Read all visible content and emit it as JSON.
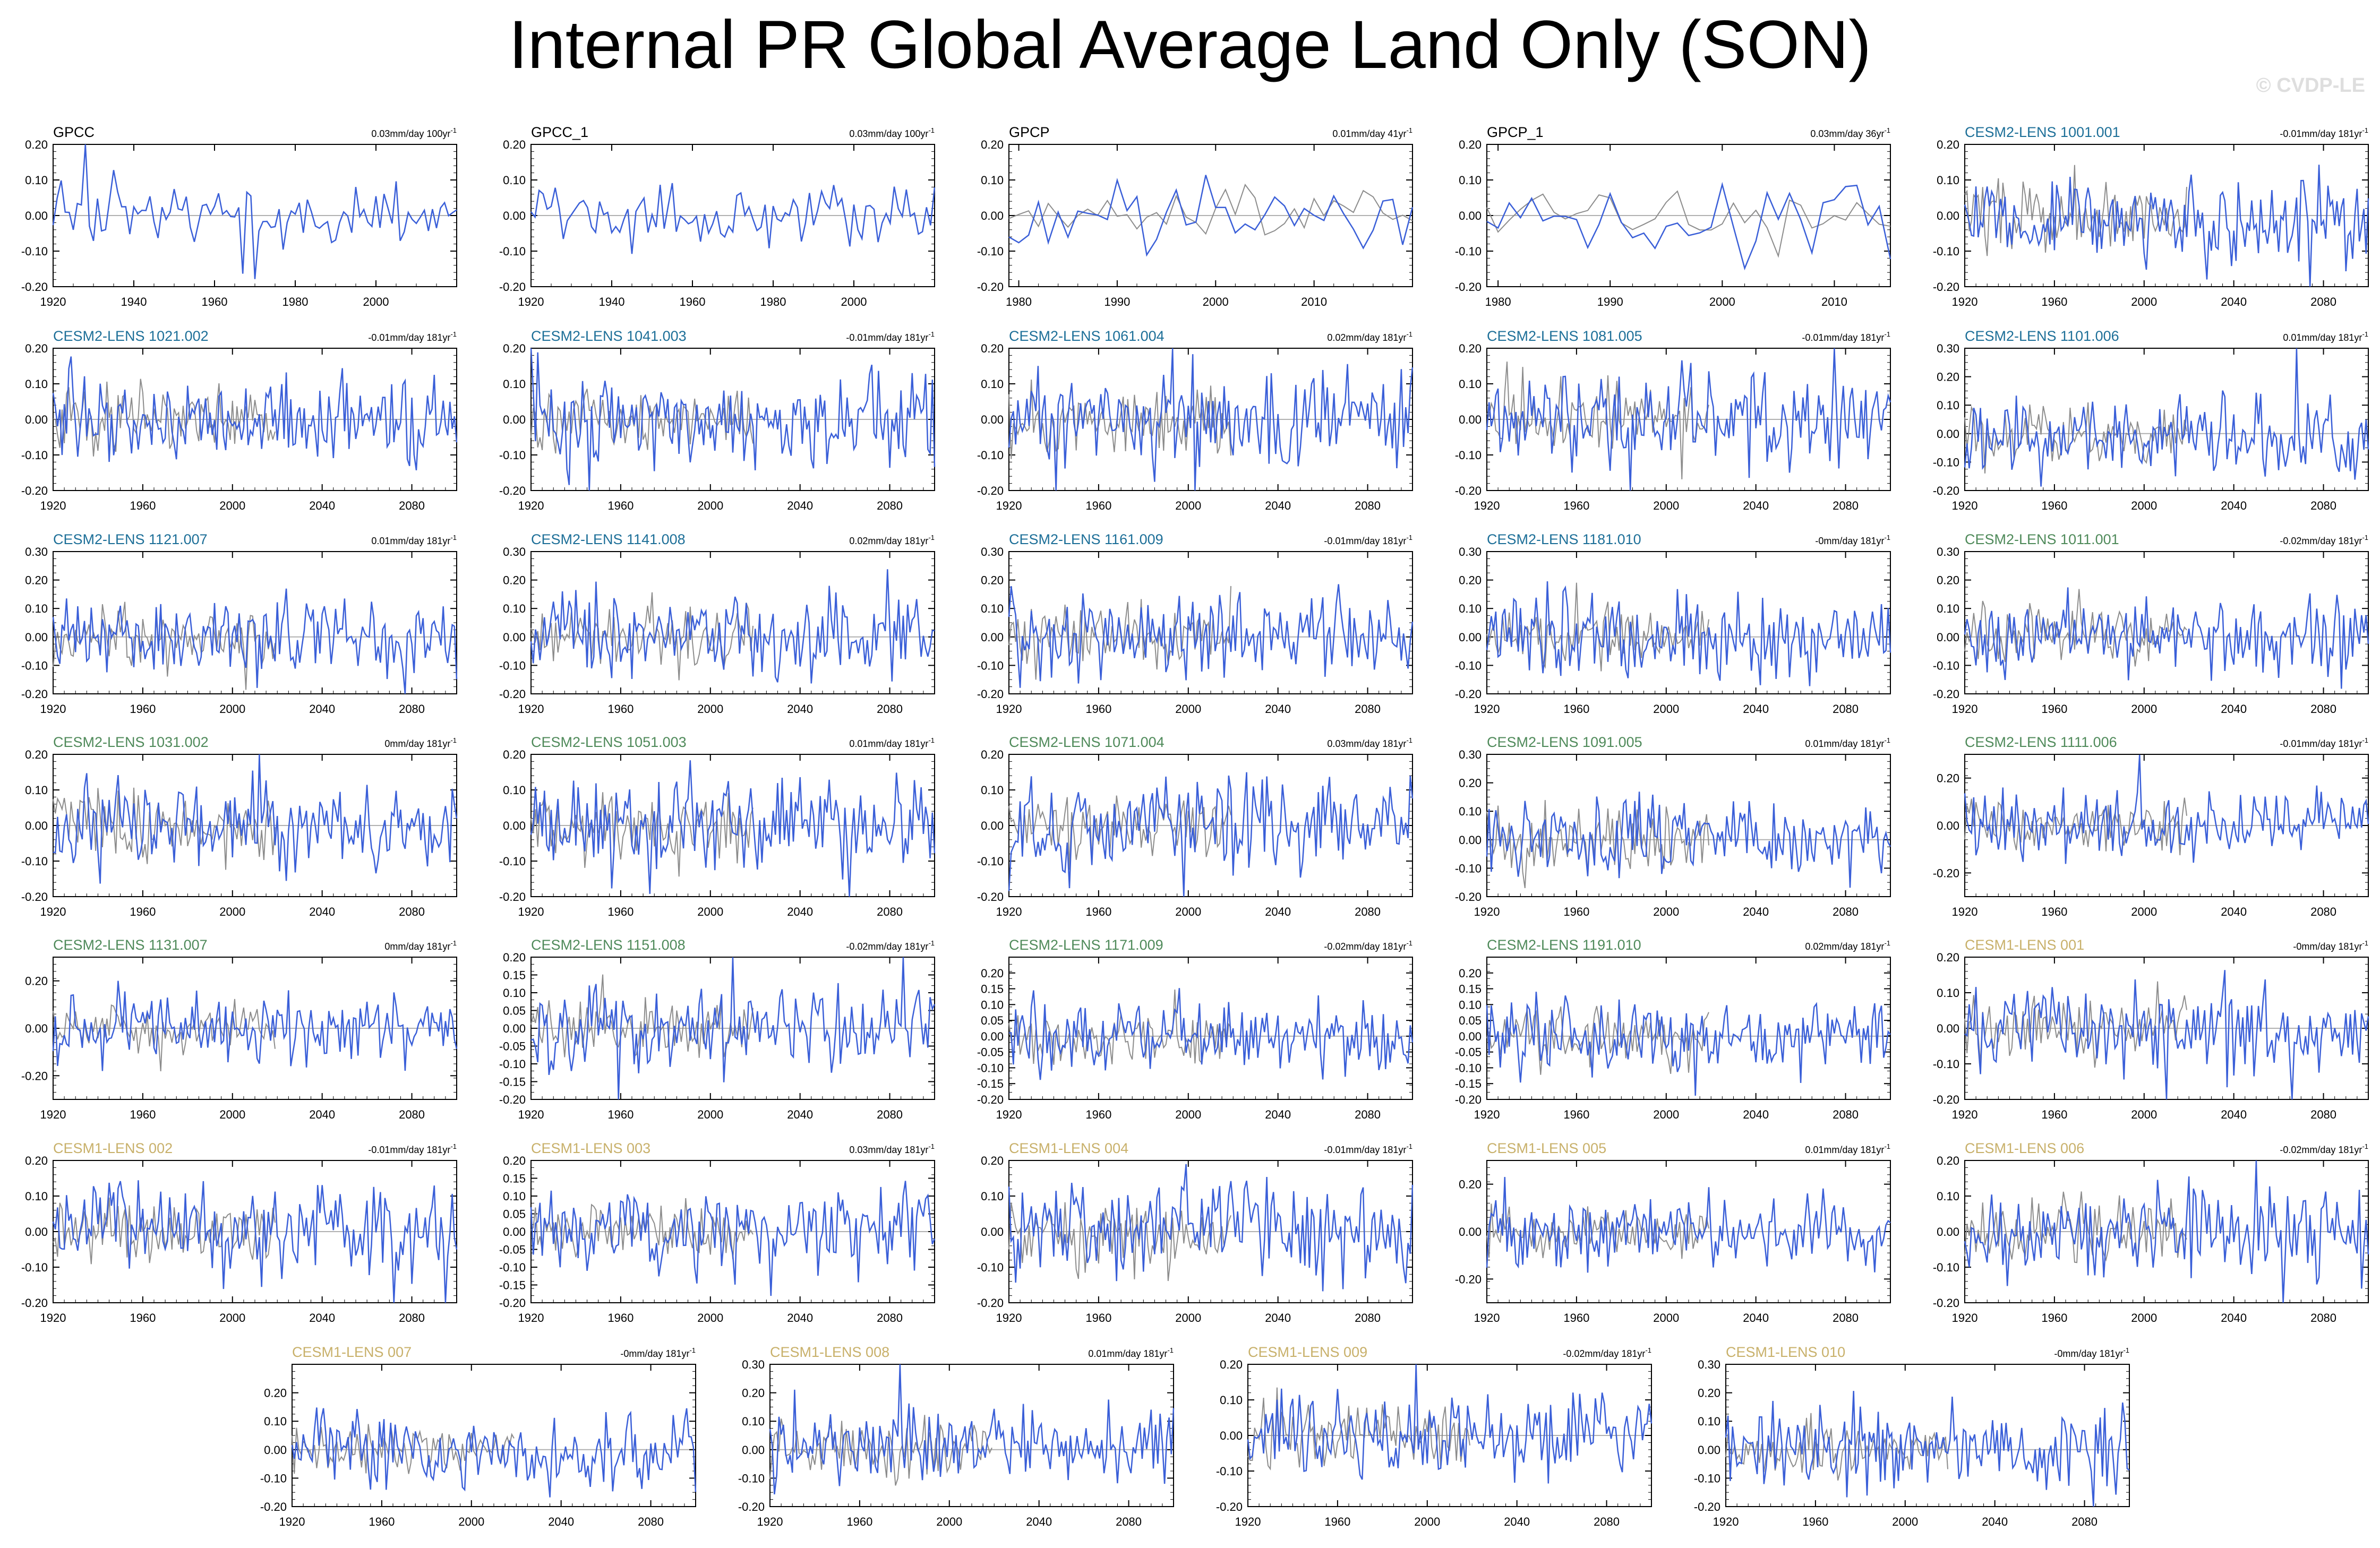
{
  "page": {
    "title": "Internal PR Global Average Land Only (SON)",
    "watermark": "© CVDP-LE"
  },
  "colors": {
    "series": "#3a5fd8",
    "reference": "#8c8c8c",
    "zero_line": "#b0b0b0",
    "label_black": "#000000",
    "label_cesm2_blue": "#1d6f98",
    "label_cesm2_green": "#4f8a5a",
    "label_cesm1": "#c8b06a"
  },
  "chart_data": [
    {
      "type": "line",
      "title": "GPCC",
      "title_color": "label_black",
      "trend": "0.03mm/day 100yr",
      "trend_unit_exp": "-1",
      "x_range": [
        1920,
        2020
      ],
      "xticks": [
        "1920",
        "1940",
        "1960",
        "1980",
        "2000"
      ],
      "ylim": [
        -0.2,
        0.2
      ],
      "yticks": [
        "0.20",
        "0.10",
        "0.00",
        "-0.10",
        "-0.20"
      ],
      "seed": 11,
      "amplitude": 0.06,
      "reference": false
    },
    {
      "type": "line",
      "title": "GPCC_1",
      "title_color": "label_black",
      "trend": "0.03mm/day 100yr",
      "trend_unit_exp": "-1",
      "x_range": [
        1920,
        2020
      ],
      "xticks": [
        "1920",
        "1940",
        "1960",
        "1980",
        "2000"
      ],
      "ylim": [
        -0.2,
        0.2
      ],
      "yticks": [
        "0.20",
        "0.10",
        "0.00",
        "-0.10",
        "-0.20"
      ],
      "seed": 12,
      "amplitude": 0.06,
      "reference": false
    },
    {
      "type": "line",
      "title": "GPCP",
      "title_color": "label_black",
      "trend": "0.01mm/day 41yr",
      "trend_unit_exp": "-1",
      "x_range": [
        1979,
        2020
      ],
      "xticks": [
        "1980",
        "1990",
        "2000",
        "2010"
      ],
      "ylim": [
        -0.2,
        0.2
      ],
      "yticks": [
        "0.20",
        "0.10",
        "0.00",
        "-0.10",
        "-0.20"
      ],
      "seed": 13,
      "amplitude": 0.08,
      "reference": true
    },
    {
      "type": "line",
      "title": "GPCP_1",
      "title_color": "label_black",
      "trend": "0.03mm/day 36yr",
      "trend_unit_exp": "-1",
      "x_range": [
        1979,
        2015
      ],
      "xticks": [
        "1980",
        "1990",
        "2000",
        "2010"
      ],
      "ylim": [
        -0.2,
        0.2
      ],
      "yticks": [
        "0.20",
        "0.10",
        "0.00",
        "-0.10",
        "-0.20"
      ],
      "seed": 14,
      "amplitude": 0.08,
      "reference": true
    },
    {
      "type": "line",
      "title": "CESM2-LENS 1001.001",
      "title_color": "label_cesm2_blue",
      "trend": "-0.01mm/day 181yr",
      "trend_unit_exp": "-1",
      "x_range": [
        1920,
        2100
      ],
      "xticks": [
        "1920",
        "1960",
        "2000",
        "2040",
        "2080"
      ],
      "ylim": [
        -0.2,
        0.2
      ],
      "yticks": [
        "0.20",
        "0.10",
        "0.00",
        "-0.10",
        "-0.20"
      ],
      "seed": 15,
      "amplitude": 0.09,
      "reference": true
    },
    {
      "type": "line",
      "title": "CESM2-LENS 1021.002",
      "title_color": "label_cesm2_blue",
      "trend": "-0.01mm/day 181yr",
      "trend_unit_exp": "-1",
      "x_range": [
        1920,
        2100
      ],
      "xticks": [
        "1920",
        "1960",
        "2000",
        "2040",
        "2080"
      ],
      "ylim": [
        -0.2,
        0.2
      ],
      "yticks": [
        "0.20",
        "0.10",
        "0.00",
        "-0.10",
        "-0.20"
      ],
      "seed": 21,
      "amplitude": 0.09,
      "reference": true
    },
    {
      "type": "line",
      "title": "CESM2-LENS 1041.003",
      "title_color": "label_cesm2_blue",
      "trend": "-0.01mm/day 181yr",
      "trend_unit_exp": "-1",
      "x_range": [
        1920,
        2100
      ],
      "xticks": [
        "1920",
        "1960",
        "2000",
        "2040",
        "2080"
      ],
      "ylim": [
        -0.2,
        0.2
      ],
      "yticks": [
        "0.20",
        "0.10",
        "0.00",
        "-0.10",
        "-0.20"
      ],
      "seed": 22,
      "amplitude": 0.09,
      "reference": true
    },
    {
      "type": "line",
      "title": "CESM2-LENS 1061.004",
      "title_color": "label_cesm2_blue",
      "trend": "0.02mm/day 181yr",
      "trend_unit_exp": "-1",
      "x_range": [
        1920,
        2100
      ],
      "xticks": [
        "1920",
        "1960",
        "2000",
        "2040",
        "2080"
      ],
      "ylim": [
        -0.2,
        0.2
      ],
      "yticks": [
        "0.20",
        "0.10",
        "0.00",
        "-0.10",
        "-0.20"
      ],
      "seed": 23,
      "amplitude": 0.09,
      "reference": true
    },
    {
      "type": "line",
      "title": "CESM2-LENS 1081.005",
      "title_color": "label_cesm2_blue",
      "trend": "-0.01mm/day 181yr",
      "trend_unit_exp": "-1",
      "x_range": [
        1920,
        2100
      ],
      "xticks": [
        "1920",
        "1960",
        "2000",
        "2040",
        "2080"
      ],
      "ylim": [
        -0.2,
        0.2
      ],
      "yticks": [
        "0.20",
        "0.10",
        "0.00",
        "-0.10",
        "-0.20"
      ],
      "seed": 24,
      "amplitude": 0.09,
      "reference": true
    },
    {
      "type": "line",
      "title": "CESM2-LENS 1101.006",
      "title_color": "label_cesm2_blue",
      "trend": "0.01mm/day 181yr",
      "trend_unit_exp": "-1",
      "x_range": [
        1920,
        2100
      ],
      "xticks": [
        "1920",
        "1960",
        "2000",
        "2040",
        "2080"
      ],
      "ylim": [
        -0.2,
        0.3
      ],
      "yticks": [
        "0.30",
        "0.20",
        "0.10",
        "0.00",
        "-0.10",
        "-0.20"
      ],
      "seed": 25,
      "amplitude": 0.1,
      "reference": true
    },
    {
      "type": "line",
      "title": "CESM2-LENS 1121.007",
      "title_color": "label_cesm2_blue",
      "trend": "0.01mm/day 181yr",
      "trend_unit_exp": "-1",
      "x_range": [
        1920,
        2100
      ],
      "xticks": [
        "1920",
        "1960",
        "2000",
        "2040",
        "2080"
      ],
      "ylim": [
        -0.2,
        0.3
      ],
      "yticks": [
        "0.30",
        "0.20",
        "0.10",
        "0.00",
        "-0.10",
        "-0.20"
      ],
      "seed": 31,
      "amplitude": 0.1,
      "reference": true
    },
    {
      "type": "line",
      "title": "CESM2-LENS 1141.008",
      "title_color": "label_cesm2_blue",
      "trend": "0.02mm/day 181yr",
      "trend_unit_exp": "-1",
      "x_range": [
        1920,
        2100
      ],
      "xticks": [
        "1920",
        "1960",
        "2000",
        "2040",
        "2080"
      ],
      "ylim": [
        -0.2,
        0.3
      ],
      "yticks": [
        "0.30",
        "0.20",
        "0.10",
        "0.00",
        "-0.10",
        "-0.20"
      ],
      "seed": 32,
      "amplitude": 0.1,
      "reference": true
    },
    {
      "type": "line",
      "title": "CESM2-LENS 1161.009",
      "title_color": "label_cesm2_blue",
      "trend": "-0.01mm/day 181yr",
      "trend_unit_exp": "-1",
      "x_range": [
        1920,
        2100
      ],
      "xticks": [
        "1920",
        "1960",
        "2000",
        "2040",
        "2080"
      ],
      "ylim": [
        -0.2,
        0.3
      ],
      "yticks": [
        "0.30",
        "0.20",
        "0.10",
        "0.00",
        "-0.10",
        "-0.20"
      ],
      "seed": 33,
      "amplitude": 0.1,
      "reference": true
    },
    {
      "type": "line",
      "title": "CESM2-LENS 1181.010",
      "title_color": "label_cesm2_blue",
      "trend": "-0mm/day 181yr",
      "trend_unit_exp": "-1",
      "x_range": [
        1920,
        2100
      ],
      "xticks": [
        "1920",
        "1960",
        "2000",
        "2040",
        "2080"
      ],
      "ylim": [
        -0.2,
        0.3
      ],
      "yticks": [
        "0.30",
        "0.20",
        "0.10",
        "0.00",
        "-0.10",
        "-0.20"
      ],
      "seed": 34,
      "amplitude": 0.1,
      "reference": true
    },
    {
      "type": "line",
      "title": "CESM2-LENS 1011.001",
      "title_color": "label_cesm2_green",
      "trend": "-0.02mm/day 181yr",
      "trend_unit_exp": "-1",
      "x_range": [
        1920,
        2100
      ],
      "xticks": [
        "1920",
        "1960",
        "2000",
        "2040",
        "2080"
      ],
      "ylim": [
        -0.2,
        0.3
      ],
      "yticks": [
        "0.30",
        "0.20",
        "0.10",
        "0.00",
        "-0.10",
        "-0.20"
      ],
      "seed": 35,
      "amplitude": 0.1,
      "reference": true
    },
    {
      "type": "line",
      "title": "CESM2-LENS 1031.002",
      "title_color": "label_cesm2_green",
      "trend": "0mm/day 181yr",
      "trend_unit_exp": "-1",
      "x_range": [
        1920,
        2100
      ],
      "xticks": [
        "1920",
        "1960",
        "2000",
        "2040",
        "2080"
      ],
      "ylim": [
        -0.2,
        0.2
      ],
      "yticks": [
        "0.20",
        "0.10",
        "0.00",
        "-0.10",
        "-0.20"
      ],
      "seed": 41,
      "amplitude": 0.09,
      "reference": true
    },
    {
      "type": "line",
      "title": "CESM2-LENS 1051.003",
      "title_color": "label_cesm2_green",
      "trend": "0.01mm/day 181yr",
      "trend_unit_exp": "-1",
      "x_range": [
        1920,
        2100
      ],
      "xticks": [
        "1920",
        "1960",
        "2000",
        "2040",
        "2080"
      ],
      "ylim": [
        -0.2,
        0.2
      ],
      "yticks": [
        "0.20",
        "0.10",
        "0.00",
        "-0.10",
        "-0.20"
      ],
      "seed": 42,
      "amplitude": 0.09,
      "reference": true
    },
    {
      "type": "line",
      "title": "CESM2-LENS 1071.004",
      "title_color": "label_cesm2_green",
      "trend": "0.03mm/day 181yr",
      "trend_unit_exp": "-1",
      "x_range": [
        1920,
        2100
      ],
      "xticks": [
        "1920",
        "1960",
        "2000",
        "2040",
        "2080"
      ],
      "ylim": [
        -0.2,
        0.2
      ],
      "yticks": [
        "0.20",
        "0.10",
        "0.00",
        "-0.10",
        "-0.20"
      ],
      "seed": 43,
      "amplitude": 0.09,
      "reference": true
    },
    {
      "type": "line",
      "title": "CESM2-LENS 1091.005",
      "title_color": "label_cesm2_green",
      "trend": "0.01mm/day 181yr",
      "trend_unit_exp": "-1",
      "x_range": [
        1920,
        2100
      ],
      "xticks": [
        "1920",
        "1960",
        "2000",
        "2040",
        "2080"
      ],
      "ylim": [
        -0.2,
        0.3
      ],
      "yticks": [
        "0.30",
        "0.20",
        "0.10",
        "0.00",
        "-0.10",
        "-0.20"
      ],
      "seed": 44,
      "amplitude": 0.1,
      "reference": true
    },
    {
      "type": "line",
      "title": "CESM2-LENS 1111.006",
      "title_color": "label_cesm2_green",
      "trend": "-0.01mm/day 181yr",
      "trend_unit_exp": "-1",
      "x_range": [
        1920,
        2100
      ],
      "xticks": [
        "1920",
        "1960",
        "2000",
        "2040",
        "2080"
      ],
      "ylim": [
        -0.3,
        0.3
      ],
      "yticks": [
        "0.20",
        "0.00",
        "-0.20"
      ],
      "seed": 45,
      "amplitude": 0.1,
      "reference": true
    },
    {
      "type": "line",
      "title": "CESM2-LENS 1131.007",
      "title_color": "label_cesm2_green",
      "trend": "0mm/day 181yr",
      "trend_unit_exp": "-1",
      "x_range": [
        1920,
        2100
      ],
      "xticks": [
        "1920",
        "1960",
        "2000",
        "2040",
        "2080"
      ],
      "ylim": [
        -0.3,
        0.3
      ],
      "yticks": [
        "0.20",
        "0.00",
        "-0.20"
      ],
      "seed": 51,
      "amplitude": 0.1,
      "reference": true
    },
    {
      "type": "line",
      "title": "CESM2-LENS 1151.008",
      "title_color": "label_cesm2_green",
      "trend": "-0.02mm/day 181yr",
      "trend_unit_exp": "-1",
      "x_range": [
        1920,
        2100
      ],
      "xticks": [
        "1920",
        "1960",
        "2000",
        "2040",
        "2080"
      ],
      "ylim": [
        -0.2,
        0.2
      ],
      "yticks": [
        "0.20",
        "0.15",
        "0.10",
        "0.05",
        "0.00",
        "-0.05",
        "-0.10",
        "-0.15",
        "-0.20"
      ],
      "seed": 52,
      "amplitude": 0.08,
      "reference": true
    },
    {
      "type": "line",
      "title": "CESM2-LENS 1171.009",
      "title_color": "label_cesm2_green",
      "trend": "-0.02mm/day 181yr",
      "trend_unit_exp": "-1",
      "x_range": [
        1920,
        2100
      ],
      "xticks": [
        "1920",
        "1960",
        "2000",
        "2040",
        "2080"
      ],
      "ylim": [
        -0.2,
        0.25
      ],
      "yticks": [
        "0.20",
        "0.15",
        "0.10",
        "0.05",
        "0.00",
        "-0.05",
        "-0.10",
        "-0.15",
        "-0.20"
      ],
      "seed": 53,
      "amplitude": 0.08,
      "reference": true
    },
    {
      "type": "line",
      "title": "CESM2-LENS 1191.010",
      "title_color": "label_cesm2_green",
      "trend": "0.02mm/day 181yr",
      "trend_unit_exp": "-1",
      "x_range": [
        1920,
        2100
      ],
      "xticks": [
        "1920",
        "1960",
        "2000",
        "2040",
        "2080"
      ],
      "ylim": [
        -0.2,
        0.25
      ],
      "yticks": [
        "0.20",
        "0.15",
        "0.10",
        "0.05",
        "0.00",
        "-0.05",
        "-0.10",
        "-0.15",
        "-0.20"
      ],
      "seed": 54,
      "amplitude": 0.08,
      "reference": true
    },
    {
      "type": "line",
      "title": "CESM1-LENS 001",
      "title_color": "label_cesm1",
      "trend": "-0mm/day 181yr",
      "trend_unit_exp": "-1",
      "x_range": [
        1920,
        2100
      ],
      "xticks": [
        "1920",
        "1960",
        "2000",
        "2040",
        "2080"
      ],
      "ylim": [
        -0.2,
        0.2
      ],
      "yticks": [
        "0.20",
        "0.10",
        "0.00",
        "-0.10",
        "-0.20"
      ],
      "seed": 55,
      "amplitude": 0.09,
      "reference": true
    },
    {
      "type": "line",
      "title": "CESM1-LENS 002",
      "title_color": "label_cesm1",
      "trend": "-0.01mm/day 181yr",
      "trend_unit_exp": "-1",
      "x_range": [
        1920,
        2100
      ],
      "xticks": [
        "1920",
        "1960",
        "2000",
        "2040",
        "2080"
      ],
      "ylim": [
        -0.2,
        0.2
      ],
      "yticks": [
        "0.20",
        "0.10",
        "0.00",
        "-0.10",
        "-0.20"
      ],
      "seed": 61,
      "amplitude": 0.09,
      "reference": true
    },
    {
      "type": "line",
      "title": "CESM1-LENS 003",
      "title_color": "label_cesm1",
      "trend": "0.03mm/day 181yr",
      "trend_unit_exp": "-1",
      "x_range": [
        1920,
        2100
      ],
      "xticks": [
        "1920",
        "1960",
        "2000",
        "2040",
        "2080"
      ],
      "ylim": [
        -0.2,
        0.2
      ],
      "yticks": [
        "0.20",
        "0.15",
        "0.10",
        "0.05",
        "0.00",
        "-0.05",
        "-0.10",
        "-0.15",
        "-0.20"
      ],
      "seed": 62,
      "amplitude": 0.08,
      "reference": true
    },
    {
      "type": "line",
      "title": "CESM1-LENS 004",
      "title_color": "label_cesm1",
      "trend": "-0.01mm/day 181yr",
      "trend_unit_exp": "-1",
      "x_range": [
        1920,
        2100
      ],
      "xticks": [
        "1920",
        "1960",
        "2000",
        "2040",
        "2080"
      ],
      "ylim": [
        -0.2,
        0.2
      ],
      "yticks": [
        "0.20",
        "0.10",
        "0.00",
        "-0.10",
        "-0.20"
      ],
      "seed": 63,
      "amplitude": 0.09,
      "reference": true
    },
    {
      "type": "line",
      "title": "CESM1-LENS 005",
      "title_color": "label_cesm1",
      "trend": "0.01mm/day 181yr",
      "trend_unit_exp": "-1",
      "x_range": [
        1920,
        2100
      ],
      "xticks": [
        "1920",
        "1960",
        "2000",
        "2040",
        "2080"
      ],
      "ylim": [
        -0.3,
        0.3
      ],
      "yticks": [
        "0.20",
        "0.00",
        "-0.20"
      ],
      "seed": 64,
      "amplitude": 0.1,
      "reference": true
    },
    {
      "type": "line",
      "title": "CESM1-LENS 006",
      "title_color": "label_cesm1",
      "trend": "-0.02mm/day 181yr",
      "trend_unit_exp": "-1",
      "x_range": [
        1920,
        2100
      ],
      "xticks": [
        "1920",
        "1960",
        "2000",
        "2040",
        "2080"
      ],
      "ylim": [
        -0.2,
        0.2
      ],
      "yticks": [
        "0.20",
        "0.10",
        "0.00",
        "-0.10",
        "-0.20"
      ],
      "seed": 65,
      "amplitude": 0.09,
      "reference": true
    },
    {
      "type": "line",
      "title": "CESM1-LENS 007",
      "title_color": "label_cesm1",
      "trend": "-0mm/day 181yr",
      "trend_unit_exp": "-1",
      "x_range": [
        1920,
        2100
      ],
      "xticks": [
        "1920",
        "1960",
        "2000",
        "2040",
        "2080"
      ],
      "ylim": [
        -0.2,
        0.3
      ],
      "yticks": [
        "0.20",
        "0.10",
        "0.00",
        "-0.10",
        "-0.20"
      ],
      "seed": 71,
      "amplitude": 0.09,
      "reference": true
    },
    {
      "type": "line",
      "title": "CESM1-LENS 008",
      "title_color": "label_cesm1",
      "trend": "0.01mm/day 181yr",
      "trend_unit_exp": "-1",
      "x_range": [
        1920,
        2100
      ],
      "xticks": [
        "1920",
        "1960",
        "2000",
        "2040",
        "2080"
      ],
      "ylim": [
        -0.2,
        0.3
      ],
      "yticks": [
        "0.30",
        "0.20",
        "0.10",
        "0.00",
        "-0.10",
        "-0.20"
      ],
      "seed": 72,
      "amplitude": 0.1,
      "reference": true
    },
    {
      "type": "line",
      "title": "CESM1-LENS 009",
      "title_color": "label_cesm1",
      "trend": "-0.02mm/day 181yr",
      "trend_unit_exp": "-1",
      "x_range": [
        1920,
        2100
      ],
      "xticks": [
        "1920",
        "1960",
        "2000",
        "2040",
        "2080"
      ],
      "ylim": [
        -0.2,
        0.2
      ],
      "yticks": [
        "0.20",
        "0.10",
        "0.00",
        "-0.10",
        "-0.20"
      ],
      "seed": 73,
      "amplitude": 0.09,
      "reference": true
    },
    {
      "type": "line",
      "title": "CESM1-LENS 010",
      "title_color": "label_cesm1",
      "trend": "-0mm/day 181yr",
      "trend_unit_exp": "-1",
      "x_range": [
        1920,
        2100
      ],
      "xticks": [
        "1920",
        "1960",
        "2000",
        "2040",
        "2080"
      ],
      "ylim": [
        -0.2,
        0.3
      ],
      "yticks": [
        "0.30",
        "0.20",
        "0.10",
        "0.00",
        "-0.10",
        "-0.20"
      ],
      "seed": 74,
      "amplitude": 0.1,
      "reference": true
    }
  ]
}
